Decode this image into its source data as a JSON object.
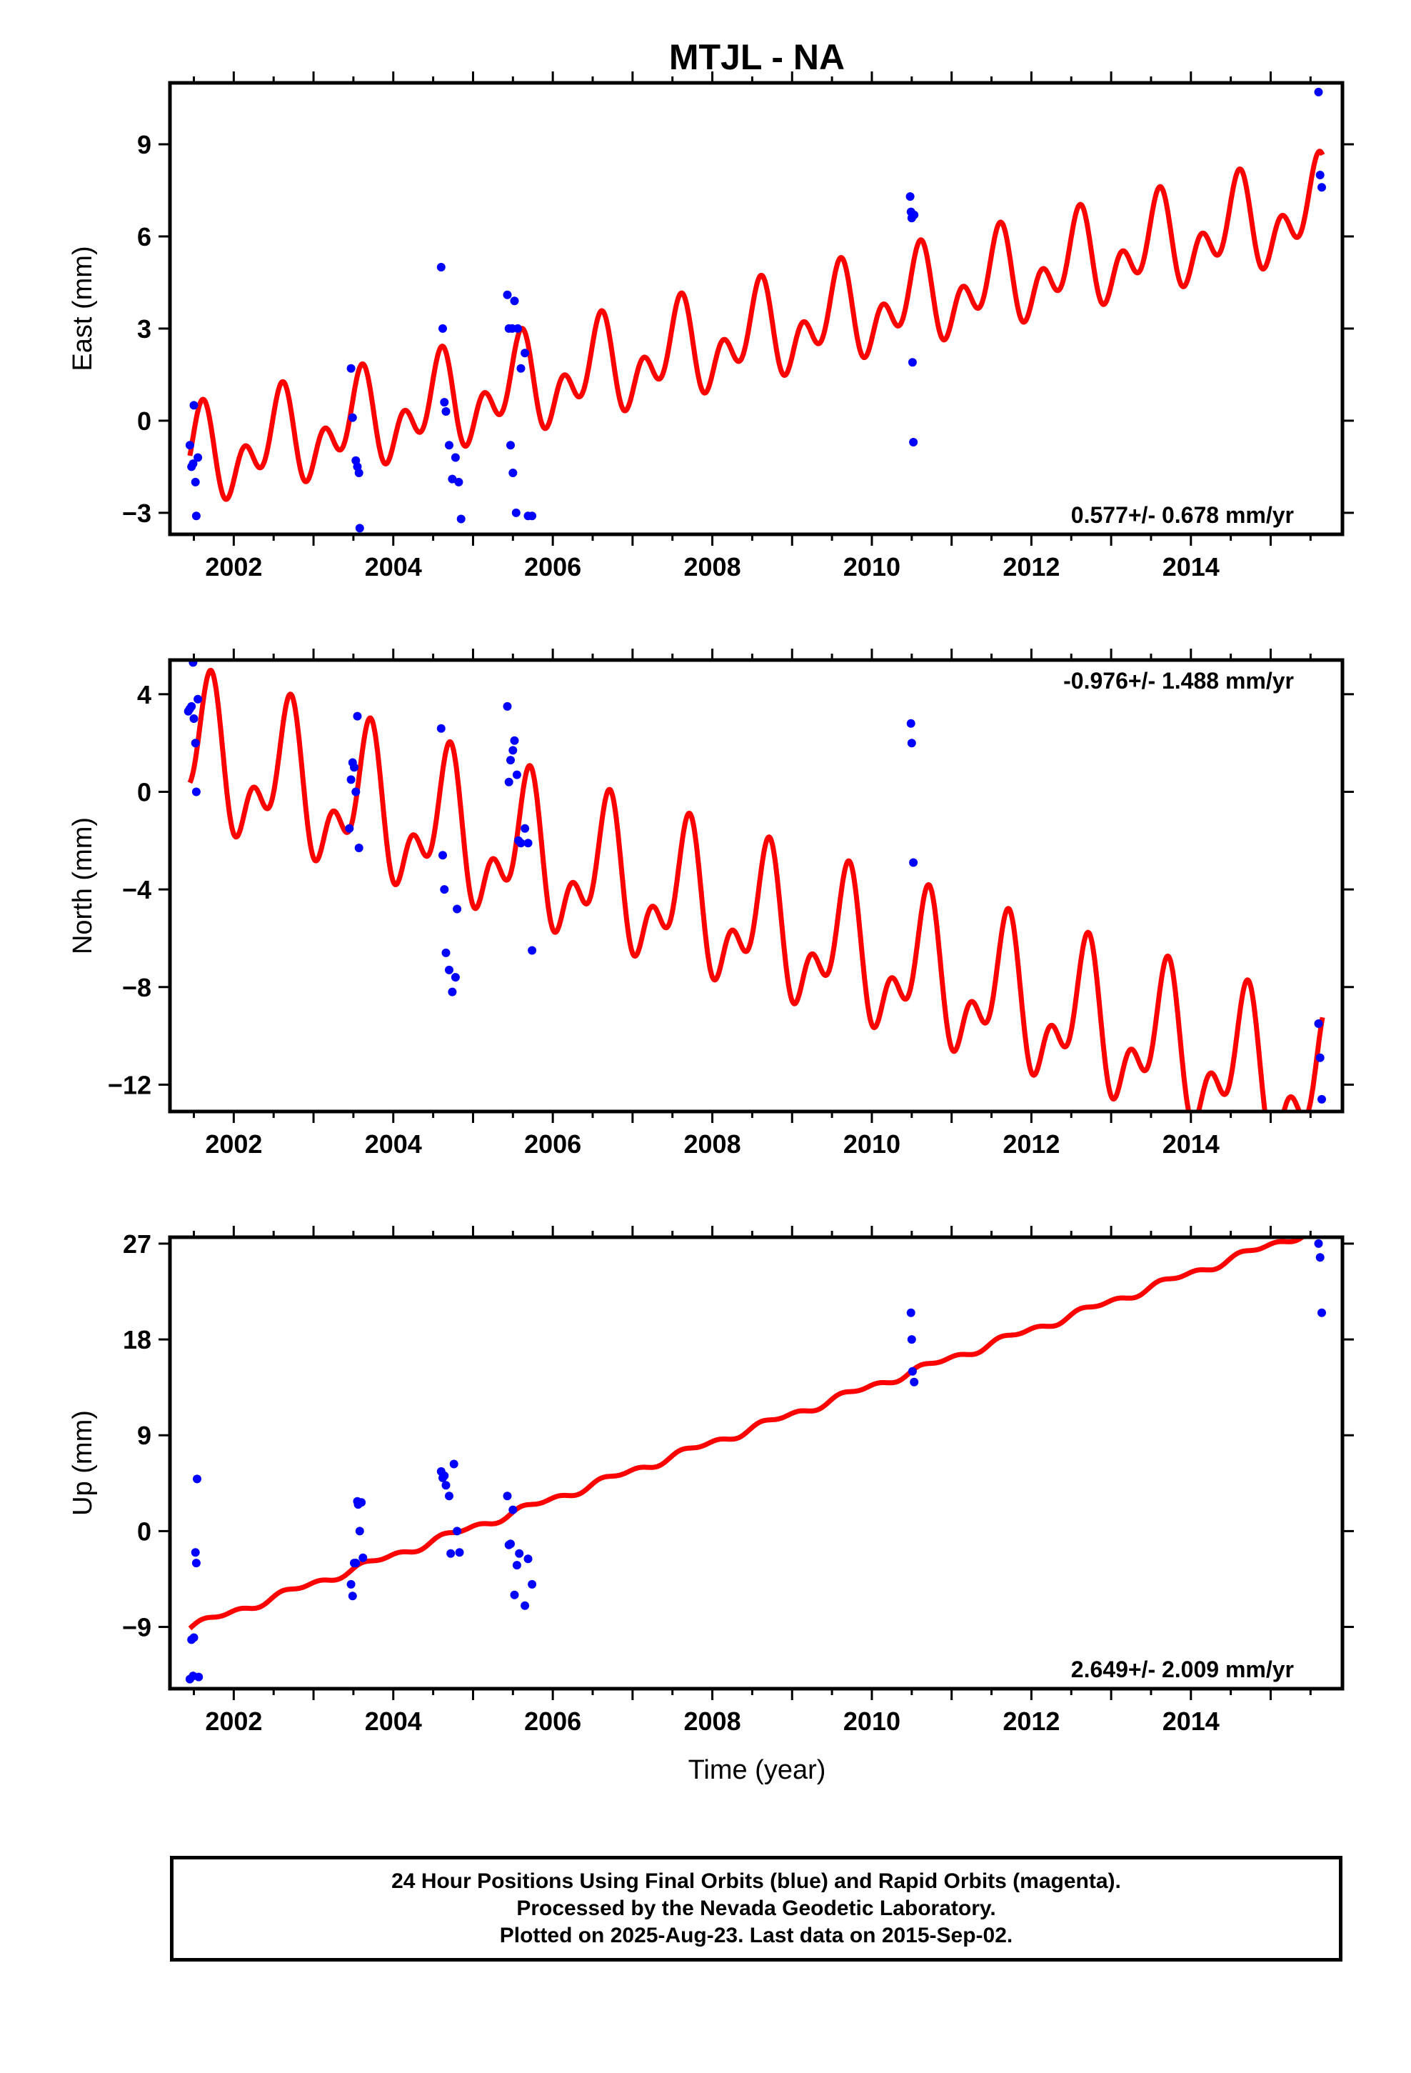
{
  "title": "MTJL - NA",
  "colors": {
    "model": "#ff0000",
    "final_orbits": "#0000ff",
    "frame": "#000000"
  },
  "xlabel": "Time (year)",
  "footer": {
    "line1": "24 Hour Positions Using Final Orbits (blue) and Rapid Orbits (magenta).",
    "line2": "Processed by the Nevada Geodetic Laboratory.",
    "line3": "Plotted on 2025-Aug-23. Last data on 2015-Sep-02."
  },
  "chart_data": [
    {
      "type": "scatter",
      "title": "MTJL - NA",
      "ylabel": "East (mm)",
      "xlabel": "",
      "rate_label": "0.577+/- 0.678 mm/yr",
      "xlim": [
        2001.2,
        2015.9
      ],
      "ylim": [
        -3.7,
        11.0
      ],
      "xticks": [
        2002,
        2004,
        2006,
        2008,
        2010,
        2012,
        2014
      ],
      "xtick_labels": [
        "2002",
        "2004",
        "2006",
        "2008",
        "2010",
        "2012",
        "2014"
      ],
      "yticks": [
        -3,
        0,
        3,
        6,
        9
      ],
      "ytick_labels": [
        "−3",
        "0",
        "3",
        "6",
        "9"
      ],
      "points": {
        "name": "Final Orbits",
        "x": [
          2001.45,
          2001.47,
          2001.49,
          2001.5,
          2001.52,
          2001.53,
          2001.55,
          2003.47,
          2003.49,
          2003.53,
          2003.55,
          2003.57,
          2003.58,
          2004.6,
          2004.62,
          2004.64,
          2004.66,
          2004.7,
          2004.74,
          2004.78,
          2004.82,
          2004.85,
          2005.43,
          2005.45,
          2005.47,
          2005.49,
          2005.5,
          2005.52,
          2005.54,
          2005.56,
          2005.6,
          2005.65,
          2005.69,
          2005.74,
          2010.48,
          2010.49,
          2010.5,
          2010.51,
          2010.52,
          2010.53,
          2015.6,
          2015.62,
          2015.64
        ],
        "y": [
          -0.8,
          -1.5,
          -1.4,
          0.5,
          -2.0,
          -3.1,
          -1.2,
          1.7,
          0.1,
          -1.3,
          -1.5,
          -1.7,
          -3.5,
          5.0,
          3.0,
          0.6,
          0.3,
          -0.8,
          -1.9,
          -1.2,
          -2.0,
          -3.2,
          4.1,
          3.0,
          -0.8,
          3.0,
          -1.7,
          3.9,
          -3.0,
          3.0,
          1.7,
          2.2,
          -3.1,
          -3.1,
          7.3,
          6.8,
          6.6,
          1.9,
          -0.7,
          6.7,
          10.7,
          8.0,
          7.6
        ]
      },
      "model": {
        "name": "Model",
        "ref_year": 2001.5,
        "offset": -1.3,
        "rate": 0.577,
        "annual": {
          "amp": 1.0,
          "phase": 1.2
        },
        "semiannual": {
          "amp": 1.0,
          "phase": 0.0
        },
        "x_range": [
          2001.45,
          2015.65
        ]
      }
    },
    {
      "type": "scatter",
      "ylabel": "North (mm)",
      "xlabel": "",
      "rate_label": "-0.976+/- 1.488 mm/yr",
      "xlim": [
        2001.2,
        2015.9
      ],
      "ylim": [
        -13.1,
        5.4
      ],
      "xticks": [
        2002,
        2004,
        2006,
        2008,
        2010,
        2012,
        2014
      ],
      "xtick_labels": [
        "2002",
        "2004",
        "2006",
        "2008",
        "2010",
        "2012",
        "2014"
      ],
      "yticks": [
        -12,
        -8,
        -4,
        0,
        4
      ],
      "ytick_labels": [
        "−12",
        "−8",
        "−4",
        "0",
        "4"
      ],
      "points": {
        "name": "Final Orbits",
        "x": [
          2001.43,
          2001.45,
          2001.47,
          2001.49,
          2001.5,
          2001.52,
          2001.53,
          2001.55,
          2003.45,
          2003.47,
          2003.49,
          2003.51,
          2003.53,
          2003.55,
          2003.57,
          2004.6,
          2004.62,
          2004.64,
          2004.66,
          2004.7,
          2004.74,
          2004.78,
          2004.8,
          2005.43,
          2005.45,
          2005.47,
          2005.5,
          2005.52,
          2005.55,
          2005.57,
          2005.6,
          2005.65,
          2005.69,
          2005.74,
          2010.49,
          2010.5,
          2010.52,
          2015.6,
          2015.62,
          2015.64
        ],
        "y": [
          3.3,
          3.4,
          3.5,
          5.3,
          3.0,
          2.0,
          0.0,
          3.8,
          -1.5,
          0.5,
          1.2,
          1.0,
          0.0,
          3.1,
          -2.3,
          2.6,
          -2.6,
          -4.0,
          -6.6,
          -7.3,
          -8.2,
          -7.6,
          -4.8,
          3.5,
          0.4,
          1.3,
          1.7,
          2.1,
          0.7,
          -2.0,
          -2.1,
          -1.5,
          -2.1,
          -6.5,
          2.8,
          2.0,
          -2.9,
          -9.5,
          -10.9,
          -12.6
        ]
      },
      "model": {
        "name": "Model",
        "ref_year": 2001.5,
        "offset": 1.4,
        "rate": -0.976,
        "annual": {
          "amp": 2.3,
          "phase": 0.5
        },
        "semiannual": {
          "amp": 1.6,
          "phase": -1.3
        },
        "x_range": [
          2001.45,
          2015.65
        ]
      }
    },
    {
      "type": "scatter",
      "ylabel": "Up (mm)",
      "xlabel": "Time (year)",
      "rate_label": "2.649+/- 2.009 mm/yr",
      "xlim": [
        2001.2,
        2015.9
      ],
      "ylim": [
        -14.8,
        27.6
      ],
      "xticks": [
        2002,
        2004,
        2006,
        2008,
        2010,
        2012,
        2014
      ],
      "xtick_labels": [
        "2002",
        "2004",
        "2006",
        "2008",
        "2010",
        "2012",
        "2014"
      ],
      "yticks": [
        -9,
        0,
        9,
        18,
        27
      ],
      "ytick_labels": [
        "−9",
        "0",
        "9",
        "18",
        "27"
      ],
      "points": {
        "name": "Final Orbits",
        "x": [
          2001.45,
          2001.47,
          2001.49,
          2001.5,
          2001.52,
          2001.53,
          2001.54,
          2001.56,
          2003.47,
          2003.49,
          2003.51,
          2003.53,
          2003.55,
          2003.56,
          2003.58,
          2003.6,
          2003.62,
          2004.6,
          2004.62,
          2004.64,
          2004.66,
          2004.7,
          2004.72,
          2004.76,
          2004.8,
          2004.83,
          2005.43,
          2005.45,
          2005.47,
          2005.5,
          2005.52,
          2005.55,
          2005.58,
          2005.65,
          2005.69,
          2005.74,
          2010.49,
          2010.5,
          2010.51,
          2010.53,
          2015.6,
          2015.62,
          2015.64
        ],
        "y": [
          -13.9,
          -10.2,
          -13.6,
          -10.0,
          -2.0,
          -3.0,
          4.9,
          -13.7,
          -5.0,
          -6.1,
          -3.0,
          -3.0,
          2.8,
          2.5,
          0.0,
          2.7,
          -2.5,
          5.6,
          5.0,
          5.2,
          4.3,
          3.3,
          -2.1,
          6.3,
          0.0,
          -2.0,
          3.3,
          -1.3,
          -1.2,
          2.0,
          -6.0,
          -3.2,
          -2.1,
          -7.0,
          -2.6,
          -5.0,
          20.5,
          18.0,
          15.0,
          14.0,
          27.0,
          25.7,
          20.5
        ]
      },
      "model": {
        "name": "Model",
        "ref_year": 2001.5,
        "offset": -8.9,
        "rate": 2.649,
        "annual": {
          "amp": 0.25,
          "phase": 0.0
        },
        "semiannual": {
          "amp": 0.2,
          "phase": 0.5
        },
        "x_range": [
          2001.45,
          2015.65
        ]
      }
    }
  ]
}
